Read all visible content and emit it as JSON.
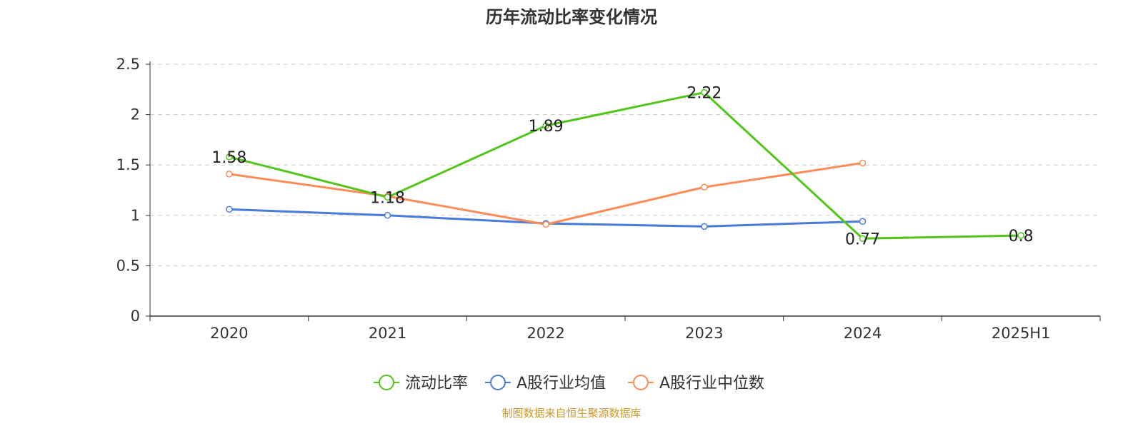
{
  "chart_data": {
    "type": "line",
    "title": "历年流动比率变化情况",
    "categories": [
      "2020",
      "2021",
      "2022",
      "2023",
      "2024",
      "2025H1"
    ],
    "ylim": [
      0,
      2.5
    ],
    "yticks": [
      0,
      0.5,
      1,
      1.5,
      2,
      2.5
    ],
    "ytick_labels": [
      "0",
      "0.5",
      "1",
      "1.5",
      "2",
      "2.5"
    ],
    "grid": true,
    "legend_position": "bottom-center",
    "series": [
      {
        "name": "流动比率",
        "color": "#52c41a",
        "values": [
          1.58,
          1.18,
          1.89,
          2.22,
          0.77,
          0.8
        ],
        "labels": [
          "1.58",
          "1.18",
          "1.89",
          "2.22",
          "0.77",
          "0.8"
        ]
      },
      {
        "name": "A股行业均值",
        "color": "#4a7bdc",
        "values": [
          1.06,
          1.0,
          0.92,
          0.89,
          0.94,
          null
        ]
      },
      {
        "name": "A股行业中位数",
        "color": "#fb8c5a",
        "values": [
          1.41,
          1.19,
          0.91,
          1.28,
          1.52,
          null
        ]
      }
    ],
    "source": "制图数据来自恒生聚源数据库"
  }
}
